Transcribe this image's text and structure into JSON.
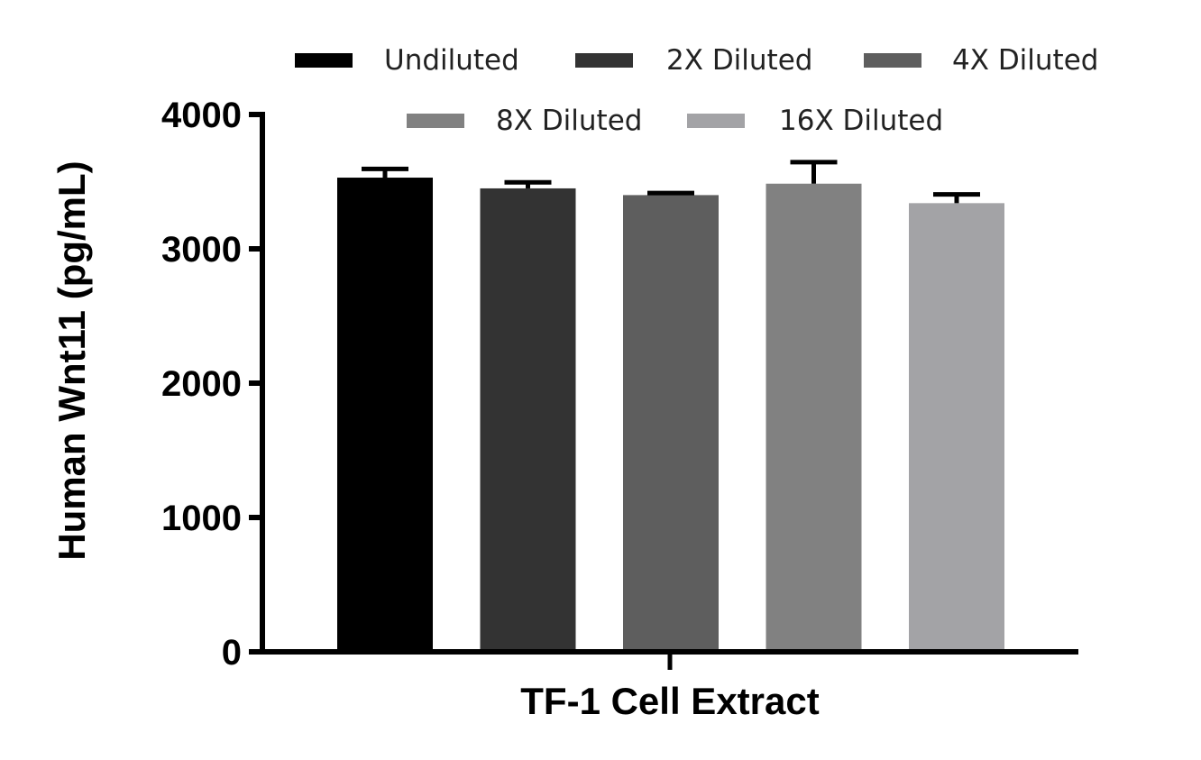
{
  "chart_data": {
    "type": "bar",
    "title": "",
    "xlabel": "TF-1 Cell Extract",
    "ylabel": "Human Wnt11 (pg/mL)",
    "ylim": [
      0,
      4000
    ],
    "yticks": [
      "0",
      "1000",
      "2000",
      "3000",
      "4000"
    ],
    "ytick_values": [
      0,
      1000,
      2000,
      3000,
      4000
    ],
    "category": "TF-1 Cell Extract",
    "legend_position": "top",
    "series": [
      {
        "name": "Undiluted",
        "value": 3530,
        "error": 65,
        "color": "#000000"
      },
      {
        "name": "2X Diluted",
        "value": 3450,
        "error": 45,
        "color": "#333333"
      },
      {
        "name": "4X Diluted",
        "value": 3400,
        "error": 15,
        "color": "#5e5e5e"
      },
      {
        "name": "8X Diluted",
        "value": 3485,
        "error": 160,
        "color": "#818181"
      },
      {
        "name": "16X Diluted",
        "value": 3340,
        "error": 65,
        "color": "#a3a3a6"
      }
    ]
  }
}
